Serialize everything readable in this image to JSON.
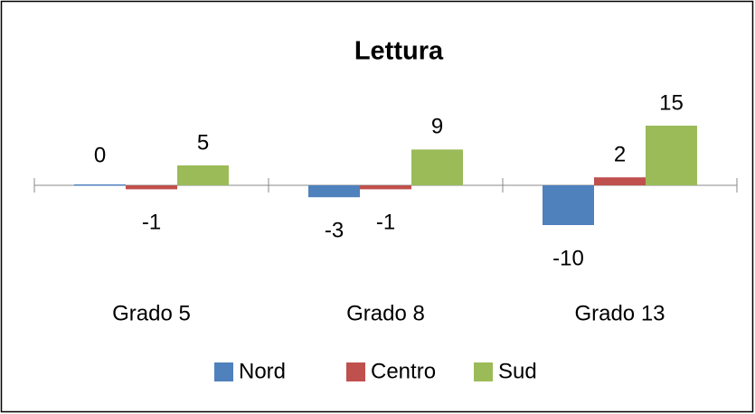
{
  "chart_data": {
    "type": "bar",
    "title": "Lettura",
    "categories": [
      "Grado 5",
      "Grado 8",
      "Grado 13"
    ],
    "series": [
      {
        "name": "Nord",
        "color": "#4f81bd",
        "values": [
          0,
          -3,
          -10
        ]
      },
      {
        "name": "Centro",
        "color": "#c0504d",
        "values": [
          -1,
          -1,
          2
        ]
      },
      {
        "name": "Sud",
        "color": "#9bbb59",
        "values": [
          5,
          9,
          15
        ]
      }
    ],
    "legend": "bottom"
  }
}
